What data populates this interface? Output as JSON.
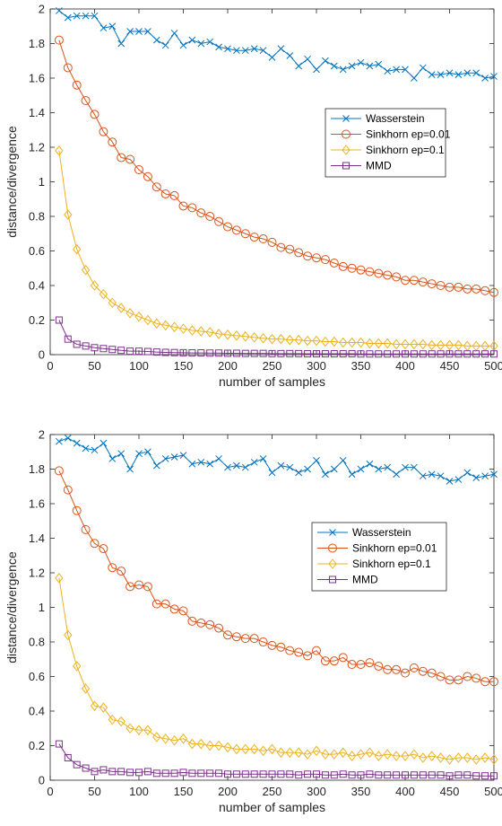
{
  "chart_data": [
    {
      "type": "line",
      "xlabel": "number of samples",
      "ylabel": "distance/divergence",
      "xlim": [
        0,
        500
      ],
      "ylim": [
        0,
        2
      ],
      "xticks": [
        0,
        50,
        100,
        150,
        200,
        250,
        300,
        350,
        400,
        450,
        500
      ],
      "yticks": [
        0,
        0.2,
        0.4,
        0.6,
        0.8,
        1,
        1.2,
        1.4,
        1.6,
        1.8,
        2
      ],
      "grid": false,
      "legend_position": "right",
      "x": [
        10,
        20,
        30,
        40,
        50,
        60,
        70,
        80,
        90,
        100,
        110,
        120,
        130,
        140,
        150,
        160,
        170,
        180,
        190,
        200,
        210,
        220,
        230,
        240,
        250,
        260,
        270,
        280,
        290,
        300,
        310,
        320,
        330,
        340,
        350,
        360,
        370,
        380,
        390,
        400,
        410,
        420,
        430,
        440,
        450,
        460,
        470,
        480,
        490,
        500
      ],
      "series": [
        {
          "name": "Wasserstein",
          "color": "#0072BD",
          "marker": "x",
          "values": [
            1.99,
            1.95,
            1.96,
            1.96,
            1.96,
            1.89,
            1.9,
            1.8,
            1.87,
            1.87,
            1.87,
            1.82,
            1.79,
            1.86,
            1.79,
            1.82,
            1.8,
            1.81,
            1.78,
            1.77,
            1.76,
            1.76,
            1.77,
            1.76,
            1.72,
            1.77,
            1.73,
            1.67,
            1.71,
            1.65,
            1.7,
            1.67,
            1.65,
            1.67,
            1.69,
            1.67,
            1.68,
            1.64,
            1.65,
            1.65,
            1.6,
            1.66,
            1.62,
            1.62,
            1.63,
            1.62,
            1.63,
            1.63,
            1.6,
            1.61
          ]
        },
        {
          "name": "Sinkhorn ep=0.01",
          "color": "#D95319",
          "marker": "o",
          "values": [
            1.82,
            1.66,
            1.56,
            1.47,
            1.39,
            1.29,
            1.23,
            1.14,
            1.13,
            1.07,
            1.03,
            0.97,
            0.93,
            0.92,
            0.86,
            0.85,
            0.82,
            0.8,
            0.77,
            0.74,
            0.72,
            0.7,
            0.68,
            0.67,
            0.65,
            0.62,
            0.61,
            0.59,
            0.57,
            0.56,
            0.55,
            0.53,
            0.51,
            0.5,
            0.49,
            0.48,
            0.47,
            0.46,
            0.45,
            0.43,
            0.43,
            0.42,
            0.41,
            0.4,
            0.39,
            0.39,
            0.38,
            0.38,
            0.37,
            0.36
          ]
        },
        {
          "name": "Sinkhorn ep=0.1",
          "color": "#EDB120",
          "marker": "diamond",
          "values": [
            1.18,
            0.81,
            0.61,
            0.49,
            0.4,
            0.35,
            0.3,
            0.27,
            0.24,
            0.22,
            0.2,
            0.18,
            0.17,
            0.16,
            0.15,
            0.14,
            0.135,
            0.13,
            0.12,
            0.115,
            0.11,
            0.105,
            0.1,
            0.095,
            0.09,
            0.09,
            0.085,
            0.085,
            0.08,
            0.08,
            0.075,
            0.075,
            0.07,
            0.07,
            0.07,
            0.065,
            0.065,
            0.065,
            0.06,
            0.06,
            0.06,
            0.06,
            0.055,
            0.055,
            0.055,
            0.055,
            0.05,
            0.05,
            0.05,
            0.05
          ]
        },
        {
          "name": "MMD",
          "color": "#7E2F8E",
          "marker": "square",
          "values": [
            0.2,
            0.09,
            0.06,
            0.05,
            0.04,
            0.035,
            0.03,
            0.025,
            0.02,
            0.02,
            0.018,
            0.015,
            0.013,
            0.012,
            0.011,
            0.01,
            0.01,
            0.009,
            0.009,
            0.008,
            0.008,
            0.007,
            0.007,
            0.007,
            0.006,
            0.006,
            0.006,
            0.006,
            0.005,
            0.005,
            0.005,
            0.005,
            0.005,
            0.005,
            0.004,
            0.004,
            0.004,
            0.004,
            0.004,
            0.004,
            0.004,
            0.004,
            0.004,
            0.004,
            0.004,
            0.004,
            0.004,
            0.004,
            0.004,
            0.004
          ]
        }
      ]
    },
    {
      "type": "line",
      "xlabel": "number of samples",
      "ylabel": "distance/divergence",
      "xlim": [
        0,
        500
      ],
      "ylim": [
        0,
        2
      ],
      "xticks": [
        0,
        50,
        100,
        150,
        200,
        250,
        300,
        350,
        400,
        450,
        500
      ],
      "yticks": [
        0,
        0.2,
        0.4,
        0.6,
        0.8,
        1,
        1.2,
        1.4,
        1.6,
        1.8,
        2
      ],
      "grid": false,
      "legend_position": "right",
      "x": [
        10,
        20,
        30,
        40,
        50,
        60,
        70,
        80,
        90,
        100,
        110,
        120,
        130,
        140,
        150,
        160,
        170,
        180,
        190,
        200,
        210,
        220,
        230,
        240,
        250,
        260,
        270,
        280,
        290,
        300,
        310,
        320,
        330,
        340,
        350,
        360,
        370,
        380,
        390,
        400,
        410,
        420,
        430,
        440,
        450,
        460,
        470,
        480,
        490,
        500
      ],
      "series": [
        {
          "name": "Wasserstein",
          "color": "#0072BD",
          "marker": "x",
          "values": [
            1.96,
            1.98,
            1.95,
            1.92,
            1.91,
            1.95,
            1.86,
            1.89,
            1.8,
            1.89,
            1.9,
            1.82,
            1.86,
            1.87,
            1.88,
            1.83,
            1.84,
            1.83,
            1.86,
            1.81,
            1.82,
            1.81,
            1.84,
            1.86,
            1.78,
            1.82,
            1.81,
            1.78,
            1.8,
            1.85,
            1.77,
            1.8,
            1.85,
            1.77,
            1.8,
            1.83,
            1.8,
            1.81,
            1.77,
            1.81,
            1.81,
            1.76,
            1.77,
            1.76,
            1.73,
            1.74,
            1.78,
            1.75,
            1.76,
            1.77
          ]
        },
        {
          "name": "Sinkhorn ep=0.01",
          "color": "#D95319",
          "marker": "o",
          "values": [
            1.79,
            1.68,
            1.56,
            1.45,
            1.37,
            1.34,
            1.23,
            1.21,
            1.12,
            1.13,
            1.12,
            1.02,
            1.02,
            0.99,
            0.98,
            0.92,
            0.91,
            0.9,
            0.88,
            0.84,
            0.83,
            0.82,
            0.82,
            0.8,
            0.78,
            0.77,
            0.75,
            0.74,
            0.72,
            0.75,
            0.69,
            0.69,
            0.71,
            0.67,
            0.67,
            0.68,
            0.66,
            0.64,
            0.64,
            0.62,
            0.65,
            0.63,
            0.62,
            0.6,
            0.58,
            0.58,
            0.6,
            0.59,
            0.57,
            0.57
          ]
        },
        {
          "name": "Sinkhorn ep=0.1",
          "color": "#EDB120",
          "marker": "diamond",
          "values": [
            1.17,
            0.84,
            0.66,
            0.53,
            0.43,
            0.42,
            0.35,
            0.34,
            0.3,
            0.29,
            0.29,
            0.25,
            0.24,
            0.23,
            0.24,
            0.21,
            0.21,
            0.2,
            0.2,
            0.19,
            0.18,
            0.18,
            0.18,
            0.17,
            0.18,
            0.16,
            0.16,
            0.16,
            0.15,
            0.17,
            0.15,
            0.15,
            0.16,
            0.14,
            0.15,
            0.16,
            0.14,
            0.15,
            0.14,
            0.14,
            0.15,
            0.13,
            0.14,
            0.13,
            0.12,
            0.13,
            0.13,
            0.12,
            0.13,
            0.12
          ]
        },
        {
          "name": "MMD",
          "color": "#7E2F8E",
          "marker": "square",
          "values": [
            0.21,
            0.13,
            0.09,
            0.07,
            0.05,
            0.06,
            0.05,
            0.05,
            0.045,
            0.045,
            0.05,
            0.04,
            0.04,
            0.04,
            0.045,
            0.04,
            0.04,
            0.04,
            0.04,
            0.035,
            0.035,
            0.035,
            0.035,
            0.035,
            0.035,
            0.035,
            0.035,
            0.03,
            0.035,
            0.035,
            0.03,
            0.03,
            0.035,
            0.03,
            0.03,
            0.035,
            0.03,
            0.03,
            0.03,
            0.03,
            0.03,
            0.03,
            0.03,
            0.03,
            0.025,
            0.03,
            0.03,
            0.025,
            0.025,
            0.025
          ]
        }
      ]
    }
  ]
}
